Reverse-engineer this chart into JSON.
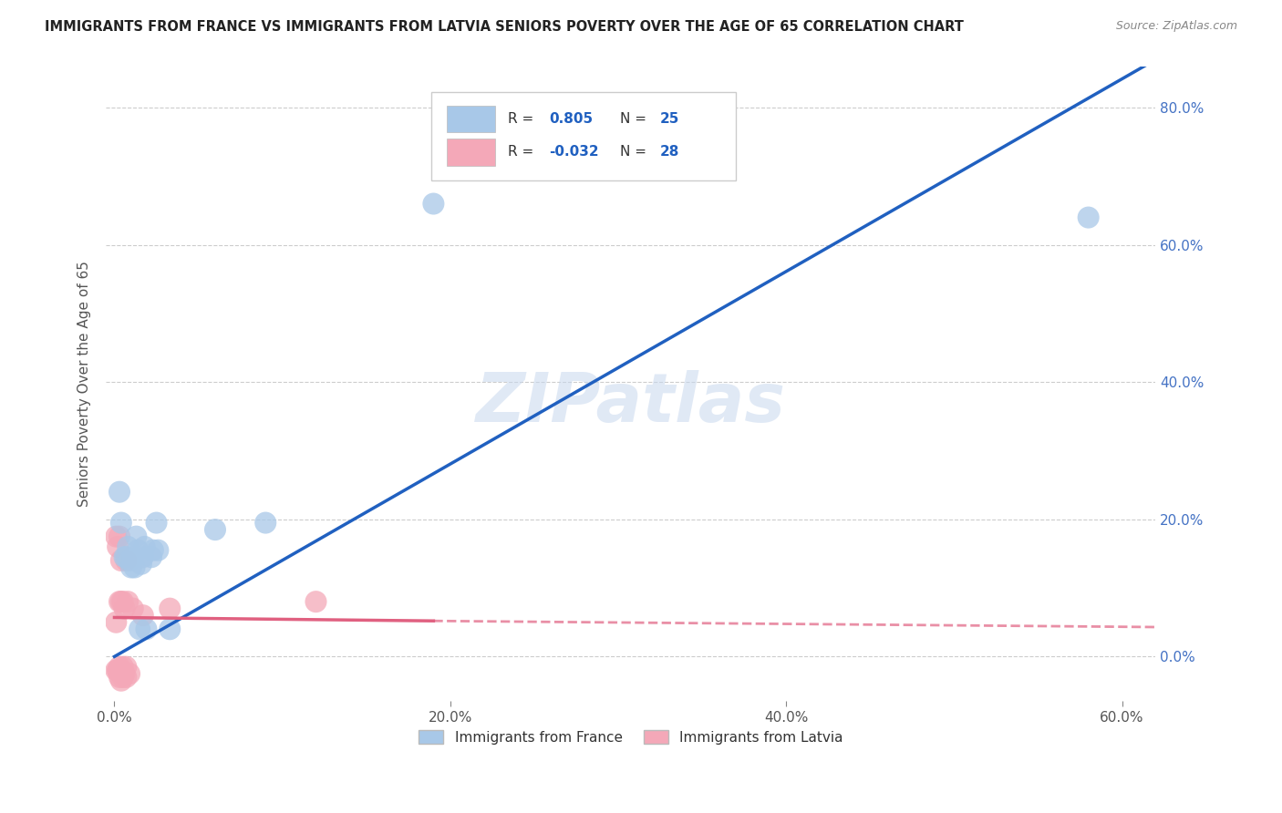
{
  "title": "IMMIGRANTS FROM FRANCE VS IMMIGRANTS FROM LATVIA SENIORS POVERTY OVER THE AGE OF 65 CORRELATION CHART",
  "source": "Source: ZipAtlas.com",
  "ylabel_label": "Seniors Poverty Over the Age of 65",
  "legend_bottom": [
    "Immigrants from France",
    "Immigrants from Latvia"
  ],
  "france_R": "0.805",
  "france_N": "25",
  "latvia_R": "-0.032",
  "latvia_N": "28",
  "xlim": [
    -0.005,
    0.62
  ],
  "ylim": [
    -0.065,
    0.86
  ],
  "watermark": "ZIPatlas",
  "france_color": "#a8c8e8",
  "latvia_color": "#f4a8b8",
  "france_line_color": "#2060c0",
  "latvia_line_color": "#e06080",
  "france_scatter": [
    [
      0.003,
      0.24
    ],
    [
      0.004,
      0.195
    ],
    [
      0.006,
      0.145
    ],
    [
      0.007,
      0.145
    ],
    [
      0.008,
      0.16
    ],
    [
      0.009,
      0.14
    ],
    [
      0.01,
      0.13
    ],
    [
      0.011,
      0.145
    ],
    [
      0.012,
      0.13
    ],
    [
      0.013,
      0.175
    ],
    [
      0.014,
      0.155
    ],
    [
      0.015,
      0.04
    ],
    [
      0.016,
      0.135
    ],
    [
      0.017,
      0.145
    ],
    [
      0.018,
      0.16
    ],
    [
      0.019,
      0.04
    ],
    [
      0.022,
      0.145
    ],
    [
      0.023,
      0.155
    ],
    [
      0.025,
      0.195
    ],
    [
      0.026,
      0.155
    ],
    [
      0.033,
      0.04
    ],
    [
      0.06,
      0.185
    ],
    [
      0.09,
      0.195
    ],
    [
      0.19,
      0.66
    ],
    [
      0.58,
      0.64
    ]
  ],
  "latvia_scatter": [
    [
      0.001,
      0.175
    ],
    [
      0.001,
      0.05
    ],
    [
      0.001,
      -0.02
    ],
    [
      0.002,
      0.16
    ],
    [
      0.002,
      -0.02
    ],
    [
      0.002,
      -0.02
    ],
    [
      0.003,
      0.175
    ],
    [
      0.003,
      0.08
    ],
    [
      0.003,
      -0.015
    ],
    [
      0.003,
      -0.03
    ],
    [
      0.004,
      0.14
    ],
    [
      0.004,
      0.08
    ],
    [
      0.004,
      -0.02
    ],
    [
      0.004,
      -0.035
    ],
    [
      0.005,
      0.08
    ],
    [
      0.005,
      -0.015
    ],
    [
      0.005,
      -0.03
    ],
    [
      0.006,
      0.07
    ],
    [
      0.006,
      -0.025
    ],
    [
      0.007,
      0.14
    ],
    [
      0.007,
      -0.015
    ],
    [
      0.007,
      -0.03
    ],
    [
      0.008,
      0.08
    ],
    [
      0.009,
      -0.025
    ],
    [
      0.011,
      0.07
    ],
    [
      0.017,
      0.06
    ],
    [
      0.033,
      0.07
    ],
    [
      0.12,
      0.08
    ]
  ],
  "france_trendline": [
    [
      0.0,
      0.0
    ],
    [
      0.62,
      0.87
    ]
  ],
  "latvia_trendline_solid": [
    [
      0.0,
      0.057
    ],
    [
      0.19,
      0.052
    ]
  ],
  "latvia_trendline_dashed": [
    [
      0.19,
      0.052
    ],
    [
      0.62,
      0.043
    ]
  ],
  "x_ticks": [
    0.0,
    0.2,
    0.4,
    0.6
  ],
  "y_ticks": [
    0.0,
    0.2,
    0.4,
    0.6,
    0.8
  ],
  "grid_color": "#cccccc",
  "tick_color": "#888888"
}
